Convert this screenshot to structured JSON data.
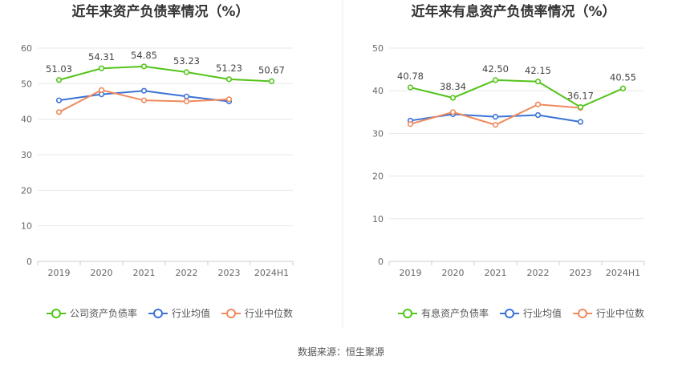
{
  "source": "数据来源：恒生聚源",
  "colors": {
    "company": "#52c41a",
    "industry_avg": "#3b73d6",
    "industry_median": "#f08a5d",
    "grid": "#e8e8e8",
    "axis": "#cccccc"
  },
  "chart_data": [
    {
      "type": "line",
      "title": "近年来资产负债率情况（%）",
      "categories": [
        "2019",
        "2020",
        "2021",
        "2022",
        "2023",
        "2024H1"
      ],
      "ylim": [
        0,
        60
      ],
      "yticks": [
        0,
        10,
        20,
        30,
        40,
        50,
        60
      ],
      "grid": true,
      "legend_position": "bottom",
      "series": [
        {
          "name": "公司资产负债率",
          "role": "company",
          "values": [
            51.03,
            54.31,
            54.85,
            53.23,
            51.23,
            50.67
          ],
          "labels": [
            "51.03",
            "54.31",
            "54.85",
            "53.23",
            "51.23",
            "50.67"
          ]
        },
        {
          "name": "行业均值",
          "role": "industry_avg",
          "values": [
            45.3,
            47.0,
            48.0,
            46.4,
            45.0,
            null
          ]
        },
        {
          "name": "行业中位数",
          "role": "industry_median",
          "values": [
            42.0,
            48.2,
            45.3,
            45.0,
            45.6,
            null
          ]
        }
      ]
    },
    {
      "type": "line",
      "title": "近年来有息资产负债率情况（%）",
      "categories": [
        "2019",
        "2020",
        "2021",
        "2022",
        "2023",
        "2024H1"
      ],
      "ylim": [
        0,
        50
      ],
      "yticks": [
        0,
        10,
        20,
        30,
        40,
        50
      ],
      "grid": true,
      "legend_position": "bottom",
      "series": [
        {
          "name": "有息资产负债率",
          "role": "company",
          "values": [
            40.78,
            38.34,
            42.5,
            42.15,
            36.17,
            40.55
          ],
          "labels": [
            "40.78",
            "38.34",
            "42.50",
            "42.15",
            "36.17",
            "40.55"
          ]
        },
        {
          "name": "行业均值",
          "role": "industry_avg",
          "values": [
            33.0,
            34.5,
            33.9,
            34.3,
            32.7,
            null
          ]
        },
        {
          "name": "行业中位数",
          "role": "industry_median",
          "values": [
            32.2,
            35.0,
            32.0,
            36.8,
            36.0,
            null
          ]
        }
      ]
    }
  ]
}
